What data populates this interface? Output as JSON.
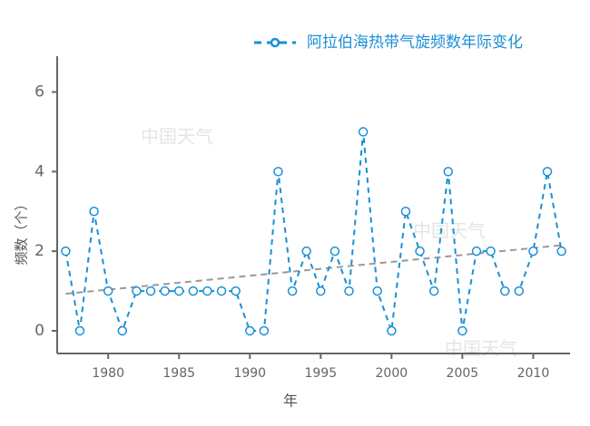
{
  "chart_data": {
    "type": "line",
    "x": [
      1977,
      1978,
      1979,
      1980,
      1981,
      1982,
      1983,
      1984,
      1985,
      1986,
      1987,
      1988,
      1989,
      1990,
      1991,
      1992,
      1993,
      1994,
      1995,
      1996,
      1997,
      1998,
      1999,
      2000,
      2001,
      2002,
      2003,
      2004,
      2005,
      2006,
      2007,
      2008,
      2009,
      2010,
      2011,
      2012
    ],
    "series": [
      {
        "name": "阿拉伯海热带气旋频数年际变化",
        "color": "#1a8fd6",
        "values": [
          2,
          0,
          3,
          1,
          0,
          1,
          1,
          1,
          1,
          1,
          1,
          1,
          1,
          0,
          0,
          4,
          1,
          2,
          1,
          2,
          1,
          5,
          1,
          0,
          3,
          2,
          1,
          4,
          0,
          2,
          2,
          1,
          1,
          2,
          4,
          2
        ]
      }
    ],
    "trendline": {
      "x": [
        1977,
        2012
      ],
      "values": [
        0.93,
        2.15
      ],
      "color": "#999999"
    },
    "xlim": [
      1976.4,
      2012.6
    ],
    "xticks": [
      1980,
      1985,
      1990,
      1995,
      2000,
      2005,
      2010
    ],
    "ylim": [
      -0.57,
      6.9
    ],
    "yticks": [
      0,
      2,
      4,
      6
    ],
    "xlabel": "年",
    "ylabel": "频数（个）",
    "watermark": "中国天气",
    "legend": "top-right"
  }
}
